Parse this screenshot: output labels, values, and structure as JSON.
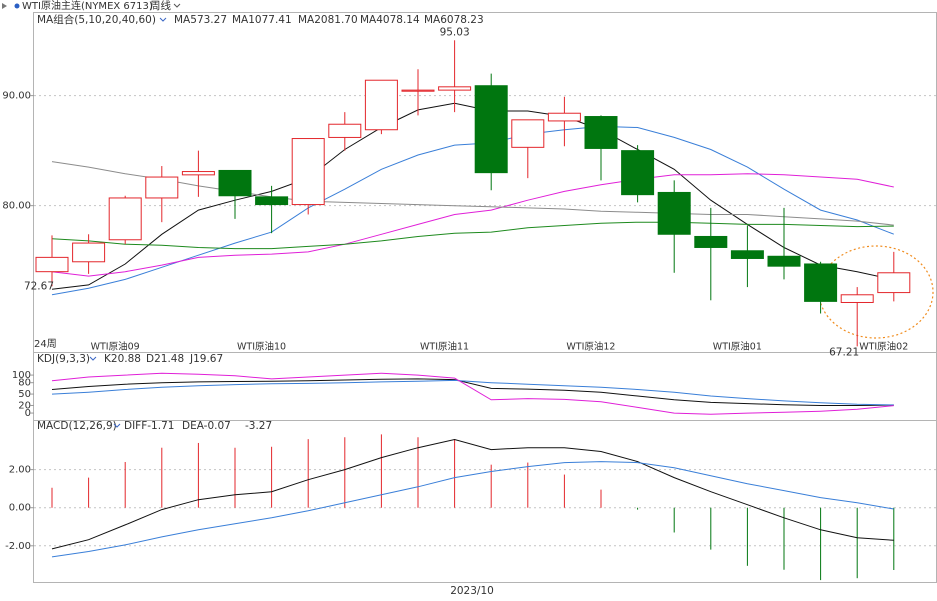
{
  "header": {
    "symbol": "WTI原油主连(NYMEX 6713)",
    "period": "周线"
  },
  "chart_data": [
    {
      "type": "candlestick",
      "indicator": "MA组合(5,10,20,40,60)",
      "period_count": "24周",
      "categories": [
        null,
        "WTI原油09",
        null,
        null,
        null,
        "WTI原油10",
        null,
        null,
        null,
        null,
        "WTI原油11",
        null,
        null,
        null,
        "WTI原油12",
        null,
        null,
        null,
        "WTI原油01",
        null,
        null,
        null,
        "WTI原油02",
        null
      ],
      "open": [
        74.0,
        74.9,
        76.9,
        80.7,
        82.8,
        83.2,
        80.8,
        80.1,
        86.2,
        86.9,
        90.4,
        90.5,
        90.9,
        85.3,
        87.7,
        88.1,
        85.0,
        81.2,
        77.2,
        75.9,
        75.4,
        74.7,
        71.2,
        72.1
      ],
      "close": [
        75.3,
        76.6,
        80.7,
        82.6,
        83.1,
        80.9,
        80.1,
        86.1,
        87.4,
        91.4,
        90.5,
        90.8,
        83.0,
        87.8,
        88.4,
        85.2,
        81.0,
        77.4,
        76.2,
        75.2,
        74.5,
        71.3,
        71.9,
        73.9
      ],
      "high": [
        77.3,
        77.4,
        80.9,
        83.6,
        85.0,
        83.2,
        81.8,
        86.1,
        88.5,
        91.4,
        92.4,
        95.03,
        92.0,
        87.8,
        89.9,
        88.2,
        85.5,
        82.3,
        79.8,
        78.2,
        79.8,
        74.9,
        72.6,
        75.8
      ],
      "low": [
        72.67,
        73.8,
        76.5,
        78.5,
        80.8,
        78.8,
        77.5,
        79.2,
        85.0,
        86.5,
        88.2,
        88.5,
        81.4,
        82.5,
        85.4,
        82.3,
        80.3,
        73.9,
        71.4,
        72.6,
        73.3,
        70.2,
        67.21,
        71.3
      ],
      "up_color": "#e3262b",
      "down_color": "#00760f",
      "ylim": [
        66.7,
        97.6
      ],
      "yticks": [
        {
          "value": 80,
          "label": "80.00"
        },
        {
          "value": 90,
          "label": "90.00"
        }
      ],
      "grid": true,
      "series": [
        {
          "name": "MA5",
          "color": "#111111",
          "values": [
            72.4,
            72.8,
            74.7,
            77.4,
            79.6,
            80.5,
            81.3,
            82.5,
            85.1,
            87.1,
            88.7,
            89.3,
            88.6,
            88.6,
            88.1,
            86.9,
            85.1,
            83.3,
            80.5,
            78.3,
            76.2,
            74.6,
            74.0,
            73.27
          ]
        },
        {
          "name": "MA10",
          "color": "#3a7fd8",
          "values": [
            71.9,
            72.5,
            73.3,
            74.4,
            75.5,
            76.6,
            77.6,
            79.8,
            81.5,
            83.3,
            84.6,
            85.5,
            85.7,
            86.5,
            86.9,
            87.2,
            87.1,
            86.2,
            85.1,
            83.5,
            81.5,
            79.6,
            78.7,
            77.41
          ]
        },
        {
          "name": "MA20",
          "color": "#e020d8",
          "values": [
            74.0,
            73.6,
            74.0,
            74.6,
            75.3,
            75.5,
            75.6,
            75.8,
            76.5,
            77.4,
            78.3,
            79.2,
            79.6,
            80.5,
            81.3,
            81.9,
            82.4,
            82.8,
            82.8,
            82.9,
            82.8,
            82.6,
            82.4,
            81.7
          ],
          "value_labels": [
            null,
            null,
            null,
            null,
            null,
            null,
            null,
            null,
            null,
            null,
            null,
            null,
            null,
            null,
            null,
            null,
            null,
            null,
            null,
            null,
            null,
            null,
            null,
            "81.70"
          ]
        },
        {
          "name": "MA40",
          "color": "#1e8a1e",
          "values": [
            77.0,
            76.8,
            76.5,
            76.4,
            76.2,
            76.1,
            76.1,
            76.3,
            76.5,
            76.8,
            77.2,
            77.5,
            77.6,
            78.0,
            78.2,
            78.4,
            78.5,
            78.5,
            78.4,
            78.3,
            78.3,
            78.2,
            78.1,
            78.14
          ]
        },
        {
          "name": "MA60",
          "color": "#8c8c8c",
          "values": [
            84.0,
            83.5,
            82.9,
            82.4,
            81.8,
            81.3,
            80.8,
            80.4,
            80.3,
            80.2,
            80.1,
            80.0,
            79.9,
            79.8,
            79.7,
            79.5,
            79.4,
            79.3,
            79.2,
            79.2,
            79.0,
            78.8,
            78.6,
            78.23
          ]
        }
      ]
    },
    {
      "type": "kdj",
      "indicator": "KDJ(9,3,3)",
      "ylim": [
        -13,
        145
      ],
      "yticks": [
        0,
        20,
        50,
        80,
        100
      ],
      "series": [
        {
          "name": "K",
          "color": "#111111",
          "values": [
            62,
            70,
            76,
            80,
            82,
            83,
            84,
            85,
            87,
            89,
            90,
            88,
            65,
            63,
            60,
            55,
            45,
            35,
            28,
            25,
            22,
            20,
            20,
            20.88
          ]
        },
        {
          "name": "D",
          "color": "#3a7fd8",
          "values": [
            50,
            55,
            62,
            68,
            72,
            75,
            77,
            78,
            80,
            82,
            84,
            86,
            80,
            76,
            72,
            68,
            62,
            55,
            45,
            38,
            32,
            27,
            23,
            21.48
          ]
        },
        {
          "name": "J",
          "color": "#e020d8",
          "values": [
            85,
            95,
            100,
            105,
            102,
            98,
            90,
            95,
            100,
            105,
            100,
            92,
            35,
            38,
            36,
            30,
            15,
            0,
            -3,
            0,
            2,
            5,
            10,
            19.67
          ]
        }
      ]
    },
    {
      "type": "macd",
      "indicator": "MACD(12,26,9)",
      "x_label": "2023/10",
      "ylim": [
        -3.9,
        4.5
      ],
      "yticks": [
        {
          "value": -2,
          "label": "-2.00"
        },
        {
          "value": 0,
          "label": "0.00"
        },
        {
          "value": 2,
          "label": "2.00"
        }
      ],
      "series": [
        {
          "name": "DIFF",
          "color": "#111111",
          "values": [
            -2.16,
            -1.68,
            -0.9,
            -0.1,
            0.42,
            0.68,
            0.84,
            1.47,
            2.0,
            2.63,
            3.15,
            3.58,
            3.05,
            3.15,
            3.15,
            2.95,
            2.42,
            1.58,
            0.84,
            0.16,
            -0.53,
            -1.16,
            -1.58,
            -1.71
          ]
        },
        {
          "name": "DEA",
          "color": "#3a7fd8",
          "values": [
            -2.58,
            -2.3,
            -1.95,
            -1.53,
            -1.16,
            -0.84,
            -0.53,
            -0.16,
            0.26,
            0.68,
            1.1,
            1.58,
            1.9,
            2.16,
            2.37,
            2.42,
            2.37,
            2.1,
            1.68,
            1.26,
            0.9,
            0.53,
            0.26,
            -0.07
          ]
        }
      ],
      "histogram": {
        "up_color": "#e3262b",
        "down_color": "#00760f",
        "values": [
          1.05,
          1.58,
          2.4,
          3.15,
          3.4,
          3.15,
          3.2,
          3.6,
          3.7,
          3.85,
          3.7,
          3.6,
          2.26,
          2.37,
          1.74,
          0.95,
          -0.1,
          -1.3,
          -2.2,
          -3.05,
          -3.26,
          -3.8,
          -3.7,
          -3.27
        ]
      }
    }
  ]
}
